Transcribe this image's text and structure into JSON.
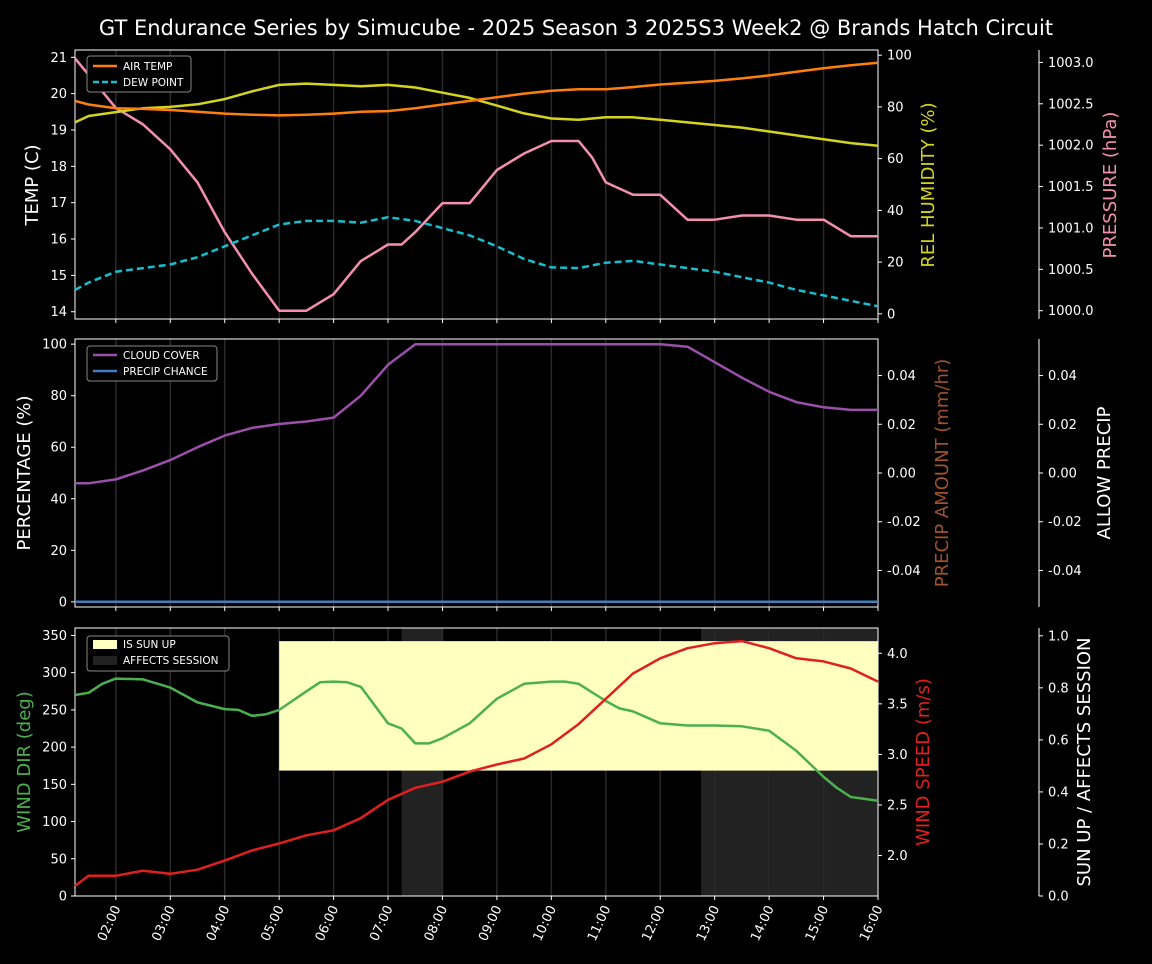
{
  "title": "GT Endurance Series by Simucube - 2025 Season 3 2025S3 Week2 @ Brands Hatch Circuit",
  "colors": {
    "background": "#000000",
    "air_temp": "#ff7f0e",
    "dew_point": "#17becf",
    "humidity": "#d4d41e",
    "pressure": "#f48fb1",
    "cloud": "#9b4fab",
    "precip": "#3f7fbf",
    "wind_dir": "#4caf50",
    "wind_speed": "#e02020",
    "sun": "#ffffc0",
    "affects": "#222222",
    "precip_amount_label": "#a0522d"
  },
  "chart_data": [
    {
      "type": "line",
      "panel": "temperature",
      "ylabel": "TEMP (C)",
      "ylim": [
        13.8,
        21.2
      ],
      "yticks": [
        14,
        15,
        16,
        17,
        18,
        19,
        20,
        21
      ],
      "legend": {
        "placement": "top-left",
        "entries": [
          "AIR TEMP",
          "DEW POINT"
        ]
      },
      "x_time_range": [
        "01:15",
        "16:00"
      ],
      "xticks": [
        "02:00",
        "03:00",
        "04:00",
        "05:00",
        "06:00",
        "07:00",
        "08:00",
        "09:00",
        "10:00",
        "11:00",
        "12:00",
        "13:00",
        "14:00",
        "15:00",
        "16:00"
      ],
      "series": [
        {
          "name": "AIR TEMP",
          "style": "solid",
          "axis": "left",
          "x": [
            "01:15",
            "01:30",
            "02:00",
            "02:30",
            "03:00",
            "03:30",
            "04:00",
            "04:30",
            "05:00",
            "05:30",
            "06:00",
            "06:30",
            "07:00",
            "07:30",
            "08:00",
            "08:30",
            "09:00",
            "09:30",
            "10:00",
            "10:30",
            "11:00",
            "11:30",
            "12:00",
            "12:30",
            "13:00",
            "13:30",
            "14:00",
            "14:30",
            "15:00",
            "15:30",
            "16:00"
          ],
          "values": [
            19.8,
            19.7,
            19.6,
            19.58,
            19.55,
            19.5,
            19.45,
            19.42,
            19.4,
            19.42,
            19.45,
            19.5,
            19.52,
            19.6,
            19.7,
            19.8,
            19.9,
            20.0,
            20.08,
            20.12,
            20.12,
            20.18,
            20.25,
            20.3,
            20.35,
            20.42,
            20.5,
            20.6,
            20.7,
            20.78,
            20.85
          ]
        },
        {
          "name": "DEW POINT",
          "style": "dashed",
          "axis": "left",
          "x": [
            "01:15",
            "01:30",
            "02:00",
            "02:30",
            "03:00",
            "03:30",
            "04:00",
            "04:30",
            "05:00",
            "05:30",
            "06:00",
            "06:30",
            "07:00",
            "07:30",
            "08:00",
            "08:30",
            "09:00",
            "09:30",
            "10:00",
            "10:30",
            "11:00",
            "11:30",
            "12:00",
            "12:30",
            "13:00",
            "13:30",
            "14:00",
            "14:30",
            "15:00",
            "15:30",
            "16:00"
          ],
          "values": [
            14.6,
            14.8,
            15.1,
            15.2,
            15.3,
            15.5,
            15.8,
            16.1,
            16.4,
            16.5,
            16.5,
            16.45,
            16.6,
            16.5,
            16.3,
            16.1,
            15.8,
            15.45,
            15.22,
            15.2,
            15.35,
            15.4,
            15.3,
            15.2,
            15.1,
            14.95,
            14.8,
            14.6,
            14.45,
            14.3,
            14.15
          ]
        },
        {
          "name": "REL HUMIDITY (%)",
          "style": "solid",
          "axis": "right1",
          "ylim": [
            -2,
            102
          ],
          "yticks": [
            0,
            20,
            40,
            60,
            80,
            100
          ],
          "x": [
            "01:15",
            "01:30",
            "02:00",
            "02:30",
            "03:00",
            "03:30",
            "04:00",
            "04:30",
            "05:00",
            "05:30",
            "06:00",
            "06:30",
            "07:00",
            "07:30",
            "08:00",
            "08:30",
            "09:00",
            "09:30",
            "10:00",
            "10:30",
            "11:00",
            "11:30",
            "12:00",
            "12:30",
            "13:00",
            "13:30",
            "14:00",
            "14:30",
            "15:00",
            "15:30",
            "16:00"
          ],
          "values": [
            74,
            76.5,
            78,
            79.5,
            80,
            81,
            83,
            86,
            88.5,
            89,
            88.5,
            88,
            88.5,
            87.5,
            85.5,
            83.5,
            80.5,
            77.5,
            75.5,
            75,
            76,
            76,
            75,
            74,
            73,
            72,
            70.5,
            69,
            67.5,
            66,
            65
          ]
        },
        {
          "name": "PRESSURE (hPa)",
          "style": "solid",
          "axis": "right2",
          "ylim": [
            999.9,
            1003.15
          ],
          "yticks": [
            1000.0,
            1000.5,
            1001.0,
            1001.5,
            1002.0,
            1002.5,
            1003.0
          ],
          "x": [
            "01:15",
            "01:30",
            "02:00",
            "02:30",
            "03:00",
            "03:30",
            "04:00",
            "04:30",
            "05:00",
            "05:30",
            "06:00",
            "06:30",
            "07:00",
            "07:15",
            "07:30",
            "08:00",
            "08:30",
            "08:45",
            "09:00",
            "09:30",
            "10:00",
            "10:15",
            "10:30",
            "10:45",
            "11:00",
            "11:30",
            "12:00",
            "12:30",
            "13:00",
            "13:30",
            "14:00",
            "14:30",
            "15:00",
            "15:30",
            "16:00"
          ],
          "values": [
            1003.05,
            1002.85,
            1002.45,
            1002.25,
            1001.95,
            1001.55,
            1000.95,
            1000.45,
            1000.0,
            1000.0,
            1000.2,
            1000.6,
            1000.8,
            1000.8,
            1000.95,
            1001.3,
            1001.3,
            1001.5,
            1001.7,
            1001.9,
            1002.05,
            1002.05,
            1002.05,
            1001.85,
            1001.55,
            1001.4,
            1001.4,
            1001.1,
            1001.1,
            1001.15,
            1001.15,
            1001.1,
            1001.1,
            1000.9,
            1000.9
          ]
        }
      ]
    },
    {
      "type": "line",
      "panel": "clouds",
      "ylabel": "PERCENTAGE (%)",
      "ylim": [
        -2,
        102
      ],
      "yticks": [
        0,
        20,
        40,
        60,
        80,
        100
      ],
      "legend": {
        "placement": "top-left",
        "entries": [
          "CLOUD COVER",
          "PRECIP CHANCE"
        ]
      },
      "right_axes": [
        {
          "label": "PRECIP AMOUNT (mm/hr)",
          "ylim": [
            -0.055,
            0.055
          ],
          "yticks": [
            "-0.04",
            "-0.02",
            "0.00",
            "0.02",
            "0.04"
          ]
        },
        {
          "label": "ALLOW PRECIP",
          "ylim": [
            -0.055,
            0.055
          ],
          "yticks": [
            "-0.04",
            "-0.02",
            "0.00",
            "0.02",
            "0.04"
          ]
        }
      ],
      "series": [
        {
          "name": "CLOUD COVER",
          "style": "solid",
          "x": [
            "01:15",
            "01:30",
            "02:00",
            "02:30",
            "03:00",
            "03:30",
            "04:00",
            "04:30",
            "05:00",
            "05:30",
            "06:00",
            "06:30",
            "07:00",
            "07:30",
            "08:00",
            "09:00",
            "10:00",
            "11:00",
            "12:00",
            "12:30",
            "13:00",
            "13:30",
            "14:00",
            "14:30",
            "15:00",
            "15:30",
            "16:00"
          ],
          "values": [
            46,
            46,
            47.5,
            51,
            55,
            60,
            64.5,
            67.5,
            69,
            70,
            71.5,
            80,
            92,
            100,
            100,
            100,
            100,
            100,
            100,
            99,
            93,
            87,
            81.5,
            77.5,
            75.5,
            74.5,
            74.5
          ]
        },
        {
          "name": "PRECIP CHANCE",
          "style": "solid",
          "x": [
            "01:15",
            "16:00"
          ],
          "values": [
            0,
            0
          ]
        }
      ]
    },
    {
      "type": "line",
      "panel": "wind",
      "ylabel": "WIND DIR (deg)",
      "ylim": [
        0,
        360
      ],
      "yticks": [
        0,
        50,
        100,
        150,
        200,
        250,
        300,
        350
      ],
      "legend": {
        "placement": "top-left",
        "entries": [
          "IS SUN UP",
          "AFFECTS SESSION"
        ]
      },
      "sun_up": {
        "from": "05:00",
        "to": "16:00",
        "value": 1
      },
      "affects_session": [
        {
          "from": "07:15",
          "to": "08:00"
        },
        {
          "from": "12:45",
          "to": "16:00"
        }
      ],
      "series": [
        {
          "name": "WIND DIR",
          "style": "solid",
          "axis": "left",
          "x": [
            "01:15",
            "01:30",
            "01:45",
            "02:00",
            "02:30",
            "03:00",
            "03:30",
            "04:00",
            "04:15",
            "04:30",
            "04:45",
            "05:00",
            "05:30",
            "05:45",
            "06:00",
            "06:15",
            "06:30",
            "07:00",
            "07:15",
            "07:30",
            "07:45",
            "08:00",
            "08:30",
            "09:00",
            "09:30",
            "10:00",
            "10:15",
            "10:30",
            "11:00",
            "11:15",
            "11:30",
            "12:00",
            "12:30",
            "13:00",
            "13:30",
            "14:00",
            "14:30",
            "15:00",
            "15:15",
            "15:30",
            "16:00"
          ],
          "values": [
            270,
            273,
            285,
            292,
            291,
            280,
            260,
            251,
            250,
            242,
            244,
            250,
            275,
            287,
            288,
            287,
            281,
            232,
            225,
            205,
            205,
            212,
            232,
            265,
            285,
            288,
            288,
            285,
            262,
            252,
            248,
            232,
            229,
            229,
            228,
            222,
            195,
            160,
            145,
            133,
            128
          ]
        },
        {
          "name": "WIND SPEED (m/s)",
          "style": "solid",
          "axis": "right1",
          "ylim": [
            1.6,
            4.25
          ],
          "yticks": [
            2.0,
            2.5,
            3.0,
            3.5,
            4.0
          ],
          "x": [
            "01:15",
            "01:30",
            "02:00",
            "02:30",
            "03:00",
            "03:30",
            "04:00",
            "04:30",
            "05:00",
            "05:30",
            "06:00",
            "06:30",
            "07:00",
            "07:30",
            "08:00",
            "08:30",
            "09:00",
            "09:30",
            "10:00",
            "10:30",
            "11:00",
            "11:30",
            "12:00",
            "12:30",
            "13:00",
            "13:30",
            "14:00",
            "14:30",
            "15:00",
            "15:30",
            "16:00"
          ],
          "values": [
            1.7,
            1.8,
            1.8,
            1.85,
            1.82,
            1.86,
            1.95,
            2.05,
            2.12,
            2.2,
            2.25,
            2.37,
            2.55,
            2.67,
            2.73,
            2.83,
            2.9,
            2.96,
            3.1,
            3.3,
            3.55,
            3.8,
            3.95,
            4.05,
            4.1,
            4.12,
            4.05,
            3.95,
            3.92,
            3.85,
            3.72
          ]
        },
        {
          "name": "SUN UP / AFFECTS SESSION",
          "axis": "right2",
          "ylim": [
            0,
            1.03
          ],
          "yticks": [
            "0.0",
            "0.2",
            "0.4",
            "0.6",
            "0.8",
            "1.0"
          ],
          "values": []
        }
      ]
    }
  ],
  "axis_labels": {
    "p1_left": "TEMP (C)",
    "p1_right1": "REL HUMIDITY (%)",
    "p1_right2": "PRESSURE (hPa)",
    "p2_left": "PERCENTAGE (%)",
    "p2_right1": "PRECIP AMOUNT (mm/hr)",
    "p2_right2": "ALLOW PRECIP",
    "p3_left": "WIND DIR (deg)",
    "p3_right1": "WIND SPEED (m/s)",
    "p3_right2": "SUN UP / AFFECTS SESSION"
  },
  "legends": {
    "p1": [
      "AIR TEMP",
      "DEW POINT"
    ],
    "p2": [
      "CLOUD COVER",
      "PRECIP CHANCE"
    ],
    "p3": [
      "IS SUN UP",
      "AFFECTS SESSION"
    ]
  }
}
